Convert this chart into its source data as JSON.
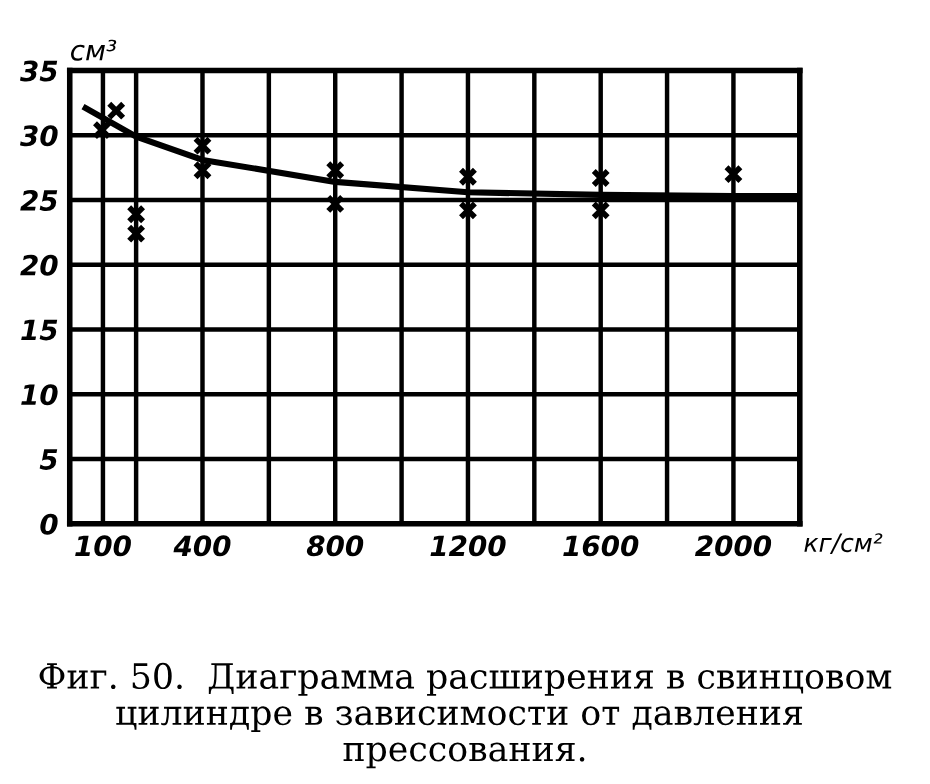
{
  "chart_data": {
    "type": "scatter",
    "title": "Фиг. 50.  Диаграмма расширения в свинцовом цилиндре в зависимости от давления  прессования.",
    "xlabel": "кг/см²",
    "ylabel": "см³",
    "series": [
      {
        "type": "line",
        "color": "#000000",
        "marker": "none",
        "line_style": "solid",
        "x": [
          48,
          200,
          400,
          800,
          1200,
          1600,
          2000,
          2200
        ],
        "values": [
          32.1,
          29.9,
          28.1,
          26.4,
          25.6,
          25.4,
          25.3,
          25.3
        ]
      },
      {
        "color": "#000000",
        "marker": "cross",
        "x": [
          97,
          140,
          200,
          200,
          400,
          400,
          800,
          800,
          1200,
          1200,
          1600,
          1600,
          2000
        ],
        "values": [
          30.4,
          31.9,
          23.9,
          22.4,
          29.2,
          27.3,
          27.3,
          24.7,
          26.8,
          24.2,
          26.7,
          24.2,
          27.0
        ]
      }
    ],
    "xlim": [
      0,
      2200
    ],
    "ylim": [
      0,
      35
    ],
    "xticks": [
      {
        "value": 100,
        "label": "100"
      },
      {
        "value": 200,
        "label": null
      },
      400,
      {
        "value": 600,
        "label": null
      },
      800,
      {
        "value": 1000,
        "label": null
      },
      1200,
      {
        "value": 1400,
        "label": null
      },
      1600,
      {
        "value": 1800,
        "label": null
      },
      2000,
      {
        "value": 2200,
        "label": null
      }
    ],
    "yticks": [
      0,
      5,
      10,
      15,
      20,
      25,
      30,
      35
    ],
    "grid": true,
    "legend": false
  }
}
